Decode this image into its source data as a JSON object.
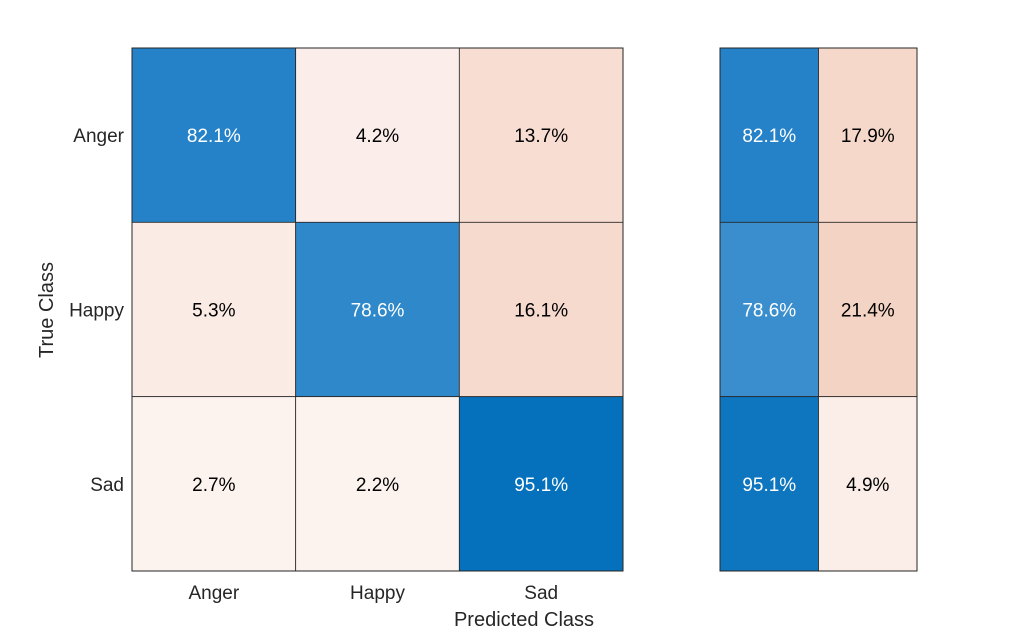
{
  "chart_data": {
    "type": "heatmap",
    "title": "",
    "xlabel": "Predicted Class",
    "ylabel": "True Class",
    "row_labels": [
      "Anger",
      "Happy",
      "Sad"
    ],
    "col_labels": [
      "Anger",
      "Happy",
      "Sad"
    ],
    "cells": [
      [
        {
          "value": 82.1,
          "text": "82.1%",
          "color": "#2582c8"
        },
        {
          "value": 4.2,
          "text": "4.2%",
          "color": "#fbede9"
        },
        {
          "value": 13.7,
          "text": "13.7%",
          "color": "#f7ddd2"
        }
      ],
      [
        {
          "value": 5.3,
          "text": "5.3%",
          "color": "#faebe5"
        },
        {
          "value": 78.6,
          "text": "78.6%",
          "color": "#2e88c9"
        },
        {
          "value": 16.1,
          "text": "16.1%",
          "color": "#f6dacd"
        }
      ],
      [
        {
          "value": 2.7,
          "text": "2.7%",
          "color": "#fcf2ee"
        },
        {
          "value": 2.2,
          "text": "2.2%",
          "color": "#fcf3ef"
        },
        {
          "value": 95.1,
          "text": "95.1%",
          "color": "#0571bc"
        }
      ]
    ],
    "row_summary": [
      [
        {
          "value": 82.1,
          "text": "82.1%",
          "color": "#2582c8"
        },
        {
          "value": 17.9,
          "text": "17.9%",
          "color": "#f5d8ca"
        }
      ],
      [
        {
          "value": 78.6,
          "text": "78.6%",
          "color": "#3a8ecd"
        },
        {
          "value": 21.4,
          "text": "21.4%",
          "color": "#f3d3c3"
        }
      ],
      [
        {
          "value": 95.1,
          "text": "95.1%",
          "color": "#0e75bf"
        },
        {
          "value": 4.9,
          "text": "4.9%",
          "color": "#fbede8"
        }
      ]
    ],
    "dark_text_color": "#000000",
    "light_text_color": "#ffffff"
  }
}
